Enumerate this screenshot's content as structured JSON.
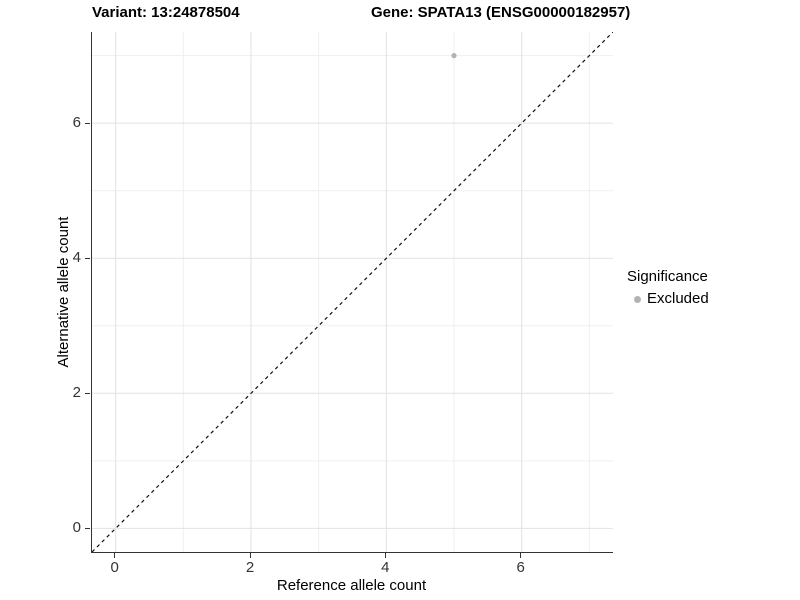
{
  "header": {
    "variant_title": "Variant: 13:24878504",
    "gene_title": "Gene: SPATA13 (ENSG00000182957)"
  },
  "legend": {
    "title": "Significance",
    "items": [
      {
        "label": "Excluded",
        "color": "#b3b3b3"
      }
    ]
  },
  "colors": {
    "background": "#ffffff",
    "axis_line": "#333333",
    "tick_text": "#333333",
    "title_text": "#000000",
    "grid_major": "#e2e2e2",
    "grid_minor": "#efefef",
    "diagonal_line": "#111111",
    "point": "#b3b3b3"
  },
  "chart_data": {
    "type": "scatter",
    "title": "Variant: 13:24878504   Gene: SPATA13 (ENSG00000182957)",
    "xlabel": "Reference allele count",
    "ylabel": "Alternative allele count",
    "xlim": [
      -0.35,
      7.35
    ],
    "ylim": [
      -0.35,
      7.35
    ],
    "x_ticks": [
      0,
      2,
      4,
      6
    ],
    "y_ticks": [
      0,
      2,
      4,
      6
    ],
    "x_minor": [
      1,
      3,
      5,
      7
    ],
    "y_minor": [
      1,
      3,
      5,
      7
    ],
    "grid": true,
    "legend_position": "right",
    "series": [
      {
        "name": "Excluded",
        "color": "#b3b3b3",
        "points": [
          {
            "x": 5,
            "y": 7
          }
        ]
      }
    ],
    "reference_line": {
      "type": "identity",
      "slope": 1,
      "intercept": 0,
      "style": "dashed",
      "color": "#111111"
    }
  }
}
